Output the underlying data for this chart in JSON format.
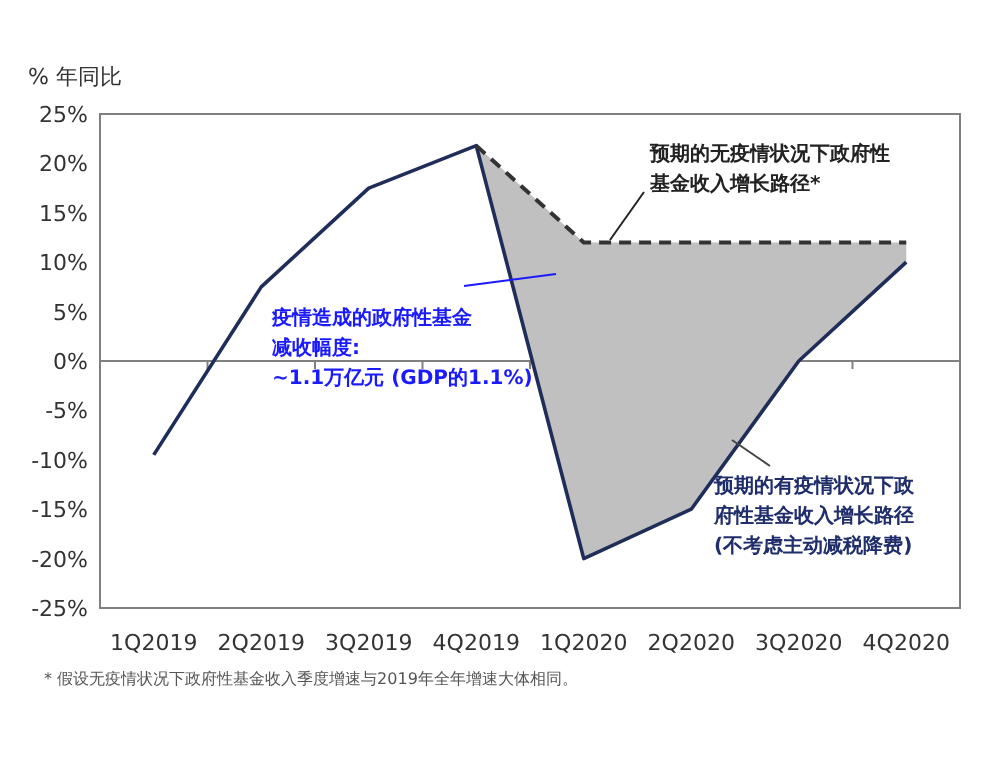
{
  "chart_data": {
    "type": "line",
    "ylabel": "% 年同比",
    "categories": [
      "1Q2019",
      "2Q2019",
      "3Q2019",
      "4Q2019",
      "1Q2020",
      "2Q2020",
      "3Q2020",
      "4Q2020"
    ],
    "series": [
      {
        "color": "#1f2d5a",
        "line_style": "solid",
        "values": [
          -9.5,
          7.5,
          17.5,
          21.8,
          -20,
          -15,
          0,
          10
        ]
      },
      {
        "color": "#333333",
        "line_style": "dashed",
        "values": [
          null,
          null,
          null,
          21.8,
          12,
          12,
          12,
          12
        ],
        "lower": [
          null,
          null,
          null,
          21.8,
          -20,
          -15,
          0,
          10
        ],
        "upper": [
          null,
          null,
          null,
          21.8,
          12,
          12,
          12,
          12
        ]
      }
    ],
    "ylim": [
      -25,
      25
    ],
    "yticks": [
      {
        "value": 25,
        "label": "25%"
      },
      {
        "value": 20,
        "label": "20%"
      },
      {
        "value": 15,
        "label": "15%"
      },
      {
        "value": 10,
        "label": "10%"
      },
      {
        "value": 5,
        "label": "5%"
      },
      {
        "value": 0,
        "label": "0%"
      },
      {
        "value": -5,
        "label": "-5%"
      },
      {
        "value": -10,
        "label": "-10%"
      },
      {
        "value": -15,
        "label": "-15%"
      },
      {
        "value": -20,
        "label": "-20%"
      },
      {
        "value": -25,
        "label": "-25%"
      }
    ],
    "marker": "none",
    "annotations": [
      "预期的无疫情状况下政府性",
      "基金收入增长路径*",
      "疫情造成的政府性基金",
      "减收幅度:",
      "~1.1万亿元 (GDP的1.1%)",
      "预期的有疫情状况下政",
      "府性基金收入增长路径",
      "(不考虑主动减税降费)",
      "* 假设无疫情状况下政府性基金收入季度增速与2019年全年增速大体相同。"
    ]
  }
}
